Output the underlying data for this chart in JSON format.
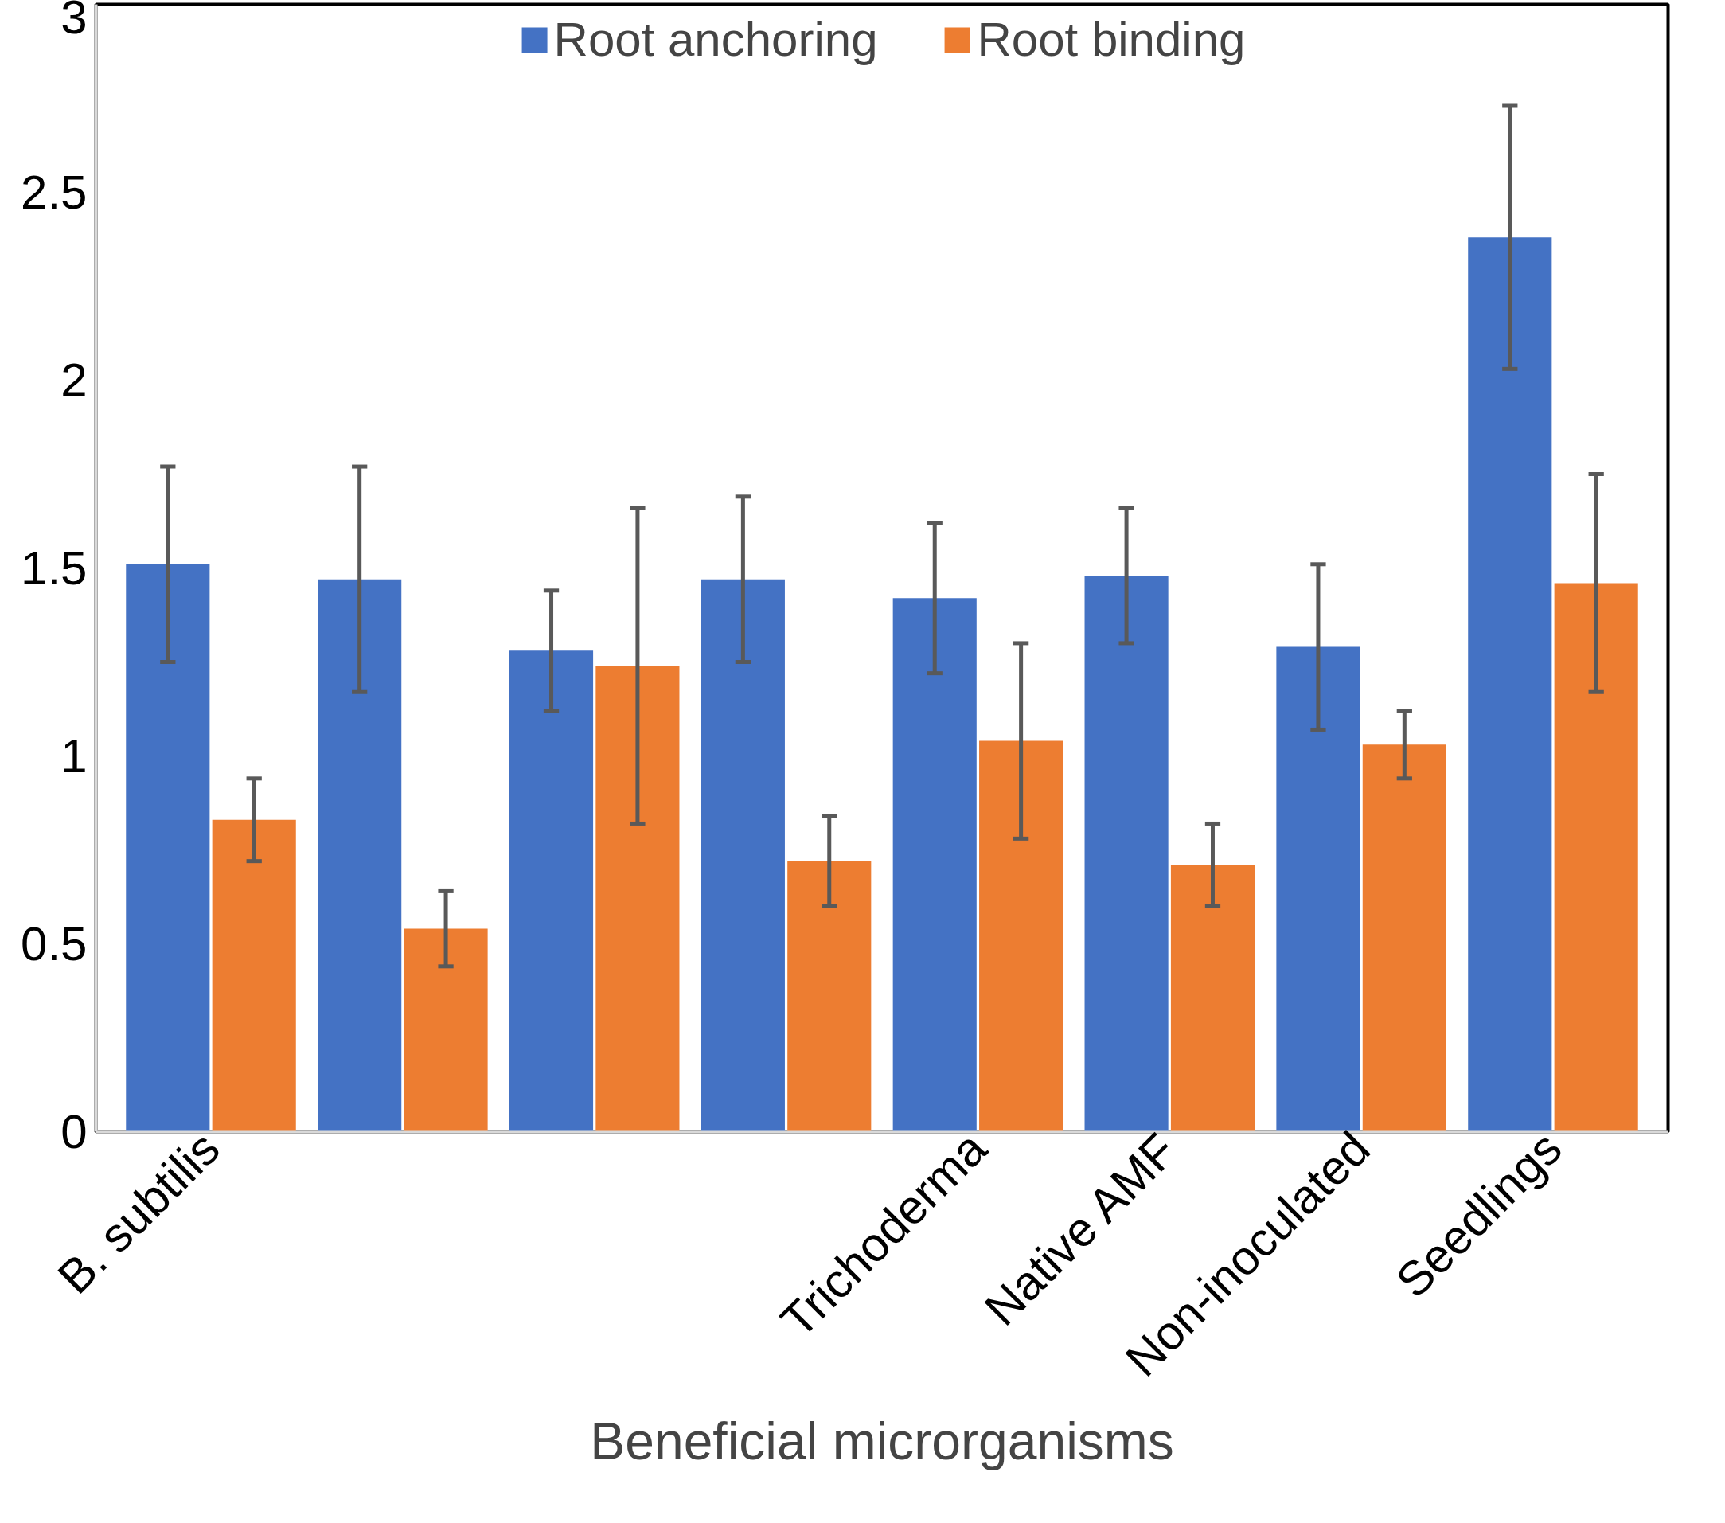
{
  "chart_data": {
    "type": "bar",
    "xlabel": "Beneficial microrganisms",
    "categories": [
      "B. subtilis",
      null,
      null,
      null,
      "Trichoderma",
      "Native AMF",
      "Non-inoculated",
      "Seedlings"
    ],
    "series": [
      {
        "name": "Root anchoring",
        "color": "#4472c4",
        "values": [
          1.51,
          1.47,
          1.28,
          1.47,
          1.42,
          1.48,
          1.29,
          2.38
        ],
        "errors": [
          0.26,
          0.3,
          0.16,
          0.22,
          0.2,
          0.18,
          0.22,
          0.35
        ]
      },
      {
        "name": "Root binding",
        "color": "#ed7d31",
        "values": [
          0.83,
          0.54,
          1.24,
          0.72,
          1.04,
          0.71,
          1.03,
          1.46
        ],
        "errors": [
          0.11,
          0.1,
          0.42,
          0.12,
          0.26,
          0.11,
          0.09,
          0.29
        ]
      }
    ],
    "ylim": [
      0,
      3
    ],
    "yticks": [
      0,
      0.5,
      1,
      1.5,
      2,
      2.5,
      3
    ],
    "grid": false,
    "legend": "top"
  }
}
